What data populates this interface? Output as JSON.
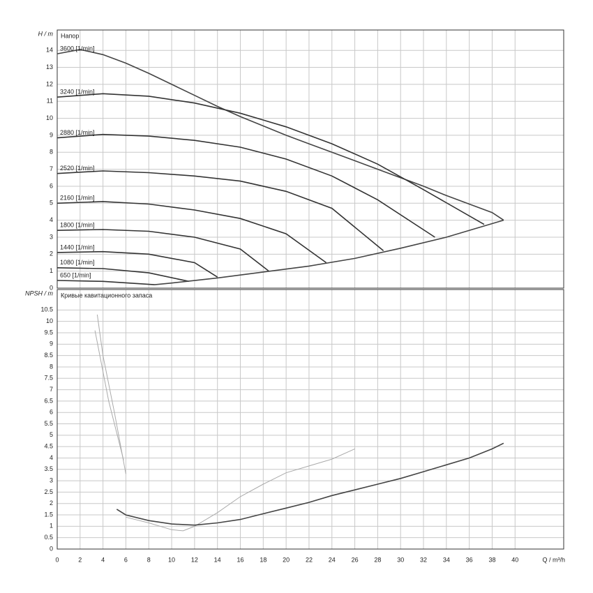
{
  "chart_data": [
    {
      "type": "line",
      "title": "Напор",
      "ylabel": "H / m",
      "xlim": [
        0,
        44.25
      ],
      "ylim": [
        0,
        15.2
      ],
      "xticks": [
        0,
        2,
        4,
        6,
        8,
        10,
        12,
        14,
        16,
        18,
        20,
        22,
        24,
        26,
        28,
        30,
        32,
        34,
        36,
        38,
        40
      ],
      "yticks": [
        0,
        1,
        2,
        3,
        4,
        5,
        6,
        7,
        8,
        9,
        10,
        11,
        12,
        13,
        14
      ],
      "grid": true,
      "series": [
        {
          "name": "3600 [1/min]",
          "color": "#444",
          "x": [
            0,
            2,
            4,
            6,
            8,
            10,
            12,
            14,
            16,
            18,
            20,
            22,
            24,
            26,
            28,
            30,
            32,
            34,
            36,
            38,
            39
          ],
          "values": [
            13.8,
            14.05,
            13.75,
            13.25,
            12.65,
            12.0,
            11.35,
            10.7,
            10.1,
            9.55,
            9.0,
            8.5,
            8.0,
            7.5,
            7.0,
            6.5,
            6.0,
            5.45,
            4.95,
            4.45,
            4.0
          ]
        },
        {
          "name": "3240 [1/min]",
          "color": "#333",
          "x": [
            0,
            4,
            8,
            12,
            16,
            20,
            24,
            28,
            32,
            37.3
          ],
          "values": [
            11.25,
            11.45,
            11.3,
            10.9,
            10.3,
            9.5,
            8.5,
            7.3,
            5.8,
            3.75
          ]
        },
        {
          "name": "2880 [1/min]",
          "color": "#333",
          "x": [
            0,
            4,
            8,
            12,
            16,
            20,
            24,
            28,
            33
          ],
          "values": [
            8.85,
            9.05,
            8.95,
            8.7,
            8.3,
            7.6,
            6.6,
            5.2,
            3.0
          ]
        },
        {
          "name": "2520 [1/min]",
          "color": "#333",
          "x": [
            0,
            4,
            8,
            12,
            16,
            20,
            24,
            28.5
          ],
          "values": [
            6.75,
            6.9,
            6.8,
            6.6,
            6.3,
            5.7,
            4.7,
            2.2
          ]
        },
        {
          "name": "2160 [1/min]",
          "color": "#333",
          "x": [
            0,
            4,
            8,
            12,
            16,
            20,
            23.5
          ],
          "values": [
            5.0,
            5.1,
            4.95,
            4.6,
            4.1,
            3.2,
            1.5
          ]
        },
        {
          "name": "1800 [1/min]",
          "color": "#333",
          "x": [
            0,
            4,
            8,
            12,
            16,
            18.5
          ],
          "values": [
            3.4,
            3.45,
            3.35,
            3.0,
            2.3,
            1.0
          ]
        },
        {
          "name": "1440 [1/min]",
          "color": "#333",
          "x": [
            0,
            4,
            8,
            12,
            14
          ],
          "values": [
            2.1,
            2.15,
            2.0,
            1.5,
            0.65
          ]
        },
        {
          "name": "1080 [1/min]",
          "color": "#333",
          "x": [
            0,
            4,
            8,
            11.5
          ],
          "values": [
            1.2,
            1.15,
            0.9,
            0.4
          ]
        },
        {
          "name": "650 [1/min]",
          "color": "#333",
          "x": [
            0,
            4,
            8.5
          ],
          "values": [
            0.45,
            0.4,
            0.2
          ]
        },
        {
          "color": "#444",
          "x": [
            8.5,
            10,
            14,
            18,
            22,
            26,
            30,
            34,
            39
          ],
          "values": [
            0.2,
            0.3,
            0.6,
            0.95,
            1.3,
            1.75,
            2.35,
            3.0,
            4.0
          ]
        }
      ]
    },
    {
      "type": "line",
      "title": "Кривые кавитационного запаса",
      "ylabel": "NPSH / m",
      "xlabel": "Q / m³/h",
      "xlim": [
        0,
        44.25
      ],
      "ylim": [
        0,
        11.4
      ],
      "xticks": [
        0,
        2,
        4,
        6,
        8,
        10,
        12,
        14,
        16,
        18,
        20,
        22,
        24,
        26,
        28,
        30,
        32,
        34,
        36,
        38,
        40
      ],
      "yticks": [
        0,
        0.5,
        1,
        1.5,
        2,
        2.5,
        3,
        3.5,
        4,
        4.5,
        5,
        5.5,
        6,
        6.5,
        7,
        7.5,
        8,
        8.5,
        9,
        9.5,
        10,
        10.5
      ],
      "grid": true,
      "series": [
        {
          "color": "#aaa",
          "x": [
            3.5,
            4,
            5,
            6
          ],
          "values": [
            10.3,
            8.5,
            6.0,
            3.3
          ]
        },
        {
          "color": "#aaa",
          "x": [
            3.3,
            4.5,
            5.8
          ],
          "values": [
            9.6,
            6.5,
            3.9
          ]
        },
        {
          "color": "#aaa",
          "x": [
            6,
            8,
            10,
            11,
            12,
            14,
            16,
            18,
            20,
            22,
            24,
            26
          ],
          "values": [
            1.4,
            1.15,
            0.85,
            0.8,
            1.0,
            1.6,
            2.3,
            2.85,
            3.35,
            3.65,
            3.95,
            4.4
          ]
        },
        {
          "color": "#444",
          "x": [
            5.2,
            6,
            8,
            10,
            12,
            14,
            16,
            18,
            20,
            22,
            24,
            26,
            28,
            30,
            32,
            34,
            36,
            38,
            39
          ],
          "values": [
            1.75,
            1.5,
            1.25,
            1.1,
            1.05,
            1.15,
            1.3,
            1.55,
            1.8,
            2.05,
            2.35,
            2.6,
            2.85,
            3.1,
            3.4,
            3.7,
            4.0,
            4.4,
            4.65
          ]
        }
      ]
    }
  ]
}
